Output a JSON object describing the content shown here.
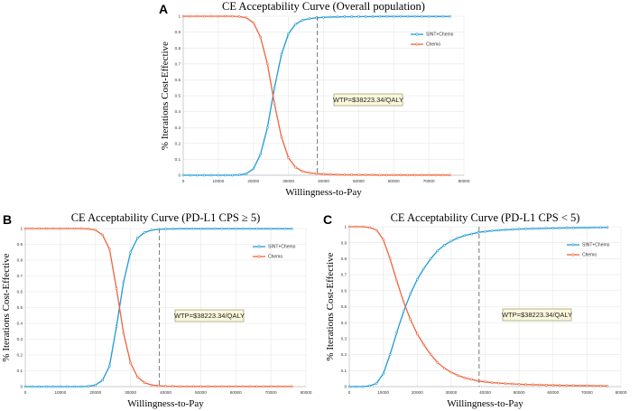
{
  "figure": {
    "panel_letters": [
      "A",
      "B",
      "C"
    ]
  },
  "chart_data": [
    {
      "type": "line",
      "panel": "A",
      "title": "CE Acceptability Curve (Overall population)",
      "xlabel": "Willingness-to-Pay",
      "ylabel": "% Iterations Cost-Effective",
      "xlim": [
        0,
        80000
      ],
      "ylim": [
        0,
        1
      ],
      "xticks": [
        0,
        10000,
        20000,
        30000,
        40000,
        50000,
        60000,
        70000,
        80000
      ],
      "yticks": [
        0,
        0.1,
        0.2,
        0.3,
        0.4,
        0.5,
        0.6,
        0.7,
        0.8,
        0.9,
        1
      ],
      "x": [
        0,
        2000,
        4000,
        6000,
        8000,
        10000,
        12000,
        14000,
        16000,
        18000,
        20000,
        22000,
        24000,
        26000,
        28000,
        30000,
        32000,
        34000,
        36000,
        38000,
        40000,
        42000,
        44000,
        46000,
        48000,
        50000,
        52000,
        54000,
        56000,
        58000,
        60000,
        62000,
        64000,
        66000,
        68000,
        70000,
        72000,
        74000,
        76000
      ],
      "series": [
        {
          "name": "SINT+Chemo",
          "color": "#1f9ad6",
          "values": [
            0,
            0,
            0,
            0,
            0,
            0,
            0,
            0,
            0.002,
            0.01,
            0.04,
            0.13,
            0.3,
            0.55,
            0.76,
            0.89,
            0.95,
            0.975,
            0.985,
            0.99,
            0.993,
            0.995,
            0.996,
            0.997,
            0.997,
            0.998,
            0.998,
            0.998,
            0.999,
            0.999,
            0.999,
            0.999,
            0.999,
            0.999,
            0.999,
            0.999,
            0.999,
            0.999,
            0.999
          ]
        },
        {
          "name": "Chemo",
          "color": "#f0643c",
          "values": [
            1,
            1,
            1,
            1,
            1,
            1,
            1,
            1,
            0.998,
            0.99,
            0.96,
            0.87,
            0.7,
            0.45,
            0.24,
            0.11,
            0.05,
            0.025,
            0.015,
            0.01,
            0.007,
            0.005,
            0.004,
            0.003,
            0.003,
            0.002,
            0.002,
            0.002,
            0.001,
            0.001,
            0.001,
            0.001,
            0.001,
            0.001,
            0.001,
            0.001,
            0.001,
            0.001,
            0.001
          ]
        }
      ],
      "wtp_line": 38223.34,
      "annotation": "WTP=$38223.34/QALY",
      "legend": "top-right"
    },
    {
      "type": "line",
      "panel": "B",
      "title": "CE Acceptability Curve (PD-L1 CPS ≥ 5)",
      "xlabel": "Willingness-to-Pay",
      "ylabel": "% Iterations Cost-Effective",
      "xlim": [
        0,
        80000
      ],
      "ylim": [
        0,
        1
      ],
      "xticks": [
        0,
        10000,
        20000,
        30000,
        40000,
        50000,
        60000,
        70000,
        80000
      ],
      "yticks": [
        0,
        0.1,
        0.2,
        0.3,
        0.4,
        0.5,
        0.6,
        0.7,
        0.8,
        0.9,
        1
      ],
      "x": [
        0,
        2000,
        4000,
        6000,
        8000,
        10000,
        12000,
        14000,
        16000,
        18000,
        20000,
        22000,
        24000,
        26000,
        28000,
        30000,
        32000,
        34000,
        36000,
        38000,
        40000,
        42000,
        44000,
        46000,
        48000,
        50000,
        52000,
        54000,
        56000,
        58000,
        60000,
        62000,
        64000,
        66000,
        68000,
        70000,
        72000,
        74000,
        76000
      ],
      "series": [
        {
          "name": "SINT+Chemo",
          "color": "#1f9ad6",
          "values": [
            0,
            0,
            0,
            0,
            0,
            0,
            0,
            0,
            0,
            0.002,
            0.01,
            0.04,
            0.13,
            0.38,
            0.66,
            0.85,
            0.94,
            0.975,
            0.99,
            0.995,
            0.997,
            0.998,
            0.999,
            0.999,
            0.999,
            0.999,
            0.999,
            0.999,
            0.999,
            0.999,
            0.999,
            0.999,
            0.999,
            0.999,
            0.999,
            0.999,
            0.999,
            0.999,
            0.999
          ]
        },
        {
          "name": "Chemo",
          "color": "#f0643c",
          "values": [
            1,
            1,
            1,
            1,
            1,
            1,
            1,
            1,
            1,
            0.998,
            0.99,
            0.96,
            0.87,
            0.62,
            0.34,
            0.15,
            0.06,
            0.025,
            0.01,
            0.005,
            0.003,
            0.002,
            0.001,
            0.001,
            0.001,
            0.001,
            0.001,
            0.001,
            0.001,
            0.001,
            0.001,
            0.001,
            0.001,
            0.001,
            0.001,
            0.001,
            0.001,
            0.001,
            0.001
          ]
        }
      ],
      "wtp_line": 38223.34,
      "annotation": "WTP=$38223.34/QALY",
      "legend": "top-right"
    },
    {
      "type": "line",
      "panel": "C",
      "title": "CE Acceptability Curve (PD-L1 CPS < 5)",
      "xlabel": "Willingness-to-Pay",
      "ylabel": "% Iterations Cost-Effective",
      "xlim": [
        0,
        80000
      ],
      "ylim": [
        0,
        1
      ],
      "xticks": [
        0,
        10000,
        20000,
        30000,
        40000,
        50000,
        60000,
        70000,
        80000
      ],
      "yticks": [
        0,
        0.1,
        0.2,
        0.3,
        0.4,
        0.5,
        0.6,
        0.7,
        0.8,
        0.9,
        1
      ],
      "x": [
        0,
        2000,
        4000,
        6000,
        8000,
        10000,
        12000,
        14000,
        16000,
        18000,
        20000,
        22000,
        24000,
        26000,
        28000,
        30000,
        32000,
        34000,
        36000,
        38000,
        40000,
        42000,
        44000,
        46000,
        48000,
        50000,
        52000,
        54000,
        56000,
        58000,
        60000,
        62000,
        64000,
        66000,
        68000,
        70000,
        72000,
        74000,
        76000
      ],
      "series": [
        {
          "name": "SINT+Chemo",
          "color": "#1f9ad6",
          "values": [
            0,
            0,
            0,
            0.005,
            0.02,
            0.08,
            0.2,
            0.34,
            0.47,
            0.58,
            0.67,
            0.74,
            0.8,
            0.85,
            0.885,
            0.91,
            0.93,
            0.945,
            0.955,
            0.965,
            0.97,
            0.975,
            0.978,
            0.981,
            0.983,
            0.985,
            0.987,
            0.988,
            0.989,
            0.99,
            0.991,
            0.992,
            0.993,
            0.993,
            0.994,
            0.994,
            0.995,
            0.995,
            0.996
          ]
        },
        {
          "name": "Chemo",
          "color": "#f0643c",
          "values": [
            1,
            1,
            1,
            0.995,
            0.98,
            0.92,
            0.8,
            0.66,
            0.53,
            0.42,
            0.33,
            0.26,
            0.2,
            0.15,
            0.115,
            0.09,
            0.07,
            0.055,
            0.045,
            0.035,
            0.03,
            0.025,
            0.022,
            0.019,
            0.017,
            0.015,
            0.013,
            0.012,
            0.011,
            0.01,
            0.009,
            0.008,
            0.007,
            0.007,
            0.006,
            0.006,
            0.005,
            0.005,
            0.004
          ]
        }
      ],
      "wtp_line": 38223.34,
      "annotation": "WTP=$38223.34/QALY",
      "legend": "top-right"
    }
  ]
}
